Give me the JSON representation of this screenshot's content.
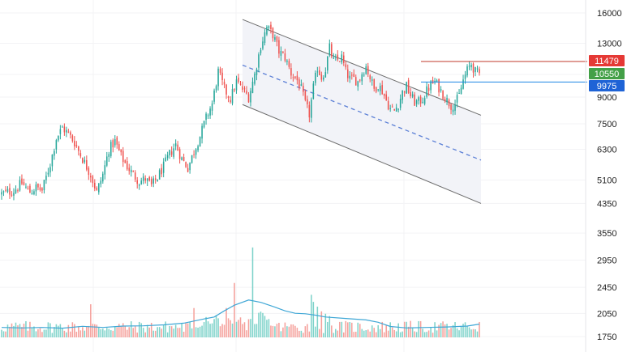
{
  "chart_data": {
    "type": "candlestick",
    "scale": "log",
    "price_axis": {
      "ticks": [
        16000,
        13000,
        10500,
        9000,
        7500,
        6300,
        5100,
        4350,
        3550,
        2950,
        2450,
        2050,
        1750
      ],
      "tick_labels": [
        "16000",
        "13000",
        "10500",
        "9000",
        "7500",
        "6300",
        "5100",
        "4350",
        "3550",
        "2950",
        "2450",
        "2050",
        "1750"
      ]
    },
    "price_labels": [
      {
        "label": "11479",
        "value": 11479,
        "color": "#e53935"
      },
      {
        "label": "10550",
        "value": 10550,
        "color": "#43a047"
      },
      {
        "label": "9975",
        "value": 9975,
        "color": "#1e63d6"
      }
    ],
    "horizontal_levels": [
      {
        "value": 11479,
        "color": "#c0392b"
      },
      {
        "value": 9975,
        "color": "#1e88e5"
      }
    ],
    "channel": {
      "upper": [
        {
          "bar": 0,
          "price": 15300
        },
        {
          "bar": 1,
          "price": 7950
        }
      ],
      "lower": [
        {
          "bar": 0,
          "price": 8550
        },
        {
          "bar": 1,
          "price": 4350
        }
      ],
      "middle": [
        {
          "bar": 0,
          "price": 11200
        },
        {
          "bar": 1,
          "price": 5850
        }
      ],
      "fill_color": "#f2f3f8",
      "line_color": "#6b6b6b",
      "mid_color": "#5b7fd6"
    },
    "close_path": [
      [
        0,
        4650
      ],
      [
        6,
        4750
      ],
      [
        10,
        5000
      ],
      [
        14,
        4700
      ],
      [
        17,
        4850
      ],
      [
        20,
        4750
      ],
      [
        24,
        5700
      ],
      [
        27,
        6800
      ],
      [
        30,
        7300
      ],
      [
        33,
        7000
      ],
      [
        36,
        6600
      ],
      [
        40,
        5900
      ],
      [
        44,
        5300
      ],
      [
        47,
        4700
      ],
      [
        50,
        5300
      ],
      [
        53,
        6300
      ],
      [
        56,
        6650
      ],
      [
        59,
        6000
      ],
      [
        62,
        5600
      ],
      [
        65,
        5300
      ],
      [
        68,
        5050
      ],
      [
        71,
        5150
      ],
      [
        74,
        4900
      ],
      [
        77,
        5200
      ],
      [
        80,
        5600
      ],
      [
        83,
        6100
      ],
      [
        86,
        6500
      ],
      [
        89,
        5900
      ],
      [
        92,
        5550
      ],
      [
        95,
        6200
      ],
      [
        98,
        6900
      ],
      [
        101,
        7800
      ],
      [
        104,
        8600
      ],
      [
        107,
        10700
      ],
      [
        110,
        9500
      ],
      [
        113,
        8900
      ],
      [
        116,
        10000
      ],
      [
        119,
        9500
      ],
      [
        122,
        9000
      ],
      [
        125,
        10500
      ],
      [
        128,
        12800
      ],
      [
        131,
        14500
      ],
      [
        134,
        13800
      ],
      [
        137,
        12300
      ],
      [
        140,
        11800
      ],
      [
        143,
        10600
      ],
      [
        146,
        10100
      ],
      [
        148,
        9500
      ],
      [
        150,
        8600
      ],
      [
        152,
        8000
      ],
      [
        154,
        9600
      ],
      [
        156,
        11000
      ],
      [
        158,
        10300
      ],
      [
        160,
        10900
      ],
      [
        162,
        12600
      ],
      [
        164,
        11500
      ],
      [
        166,
        11600
      ],
      [
        168,
        11800
      ],
      [
        170,
        10700
      ],
      [
        172,
        10200
      ],
      [
        174,
        10200
      ],
      [
        176,
        10000
      ],
      [
        178,
        10600
      ],
      [
        180,
        11100
      ],
      [
        182,
        10300
      ],
      [
        184,
        9500
      ],
      [
        186,
        9800
      ],
      [
        188,
        9400
      ],
      [
        190,
        8800
      ],
      [
        192,
        8300
      ],
      [
        194,
        8200
      ],
      [
        196,
        8600
      ],
      [
        198,
        9300
      ],
      [
        200,
        9700
      ],
      [
        202,
        9100
      ],
      [
        204,
        8700
      ],
      [
        206,
        8700
      ],
      [
        208,
        8900
      ],
      [
        210,
        9400
      ],
      [
        212,
        9800
      ],
      [
        214,
        10000
      ],
      [
        216,
        9600
      ],
      [
        218,
        9200
      ],
      [
        220,
        8800
      ],
      [
        222,
        8500
      ],
      [
        224,
        8600
      ],
      [
        226,
        9100
      ],
      [
        228,
        10100
      ],
      [
        230,
        10800
      ],
      [
        232,
        11300
      ],
      [
        234,
        10700
      ],
      [
        236,
        10550
      ]
    ],
    "volume": {
      "scale_top": 2000,
      "spikes": [
        [
          44,
          700
        ],
        [
          95,
          620
        ],
        [
          124,
          1900
        ],
        [
          115,
          1150
        ],
        [
          127,
          520
        ],
        [
          111,
          620
        ],
        [
          101,
          430
        ],
        [
          153,
          900
        ],
        [
          154,
          750
        ],
        [
          156,
          650
        ],
        [
          158,
          550
        ],
        [
          160,
          500
        ],
        [
          162,
          450
        ]
      ]
    },
    "volume_ma": [
      [
        0,
        210
      ],
      [
        10,
        200
      ],
      [
        20,
        210
      ],
      [
        30,
        195
      ],
      [
        40,
        235
      ],
      [
        50,
        210
      ],
      [
        60,
        240
      ],
      [
        70,
        245
      ],
      [
        80,
        265
      ],
      [
        90,
        300
      ],
      [
        100,
        390
      ],
      [
        105,
        430
      ],
      [
        110,
        560
      ],
      [
        115,
        680
      ],
      [
        122,
        790
      ],
      [
        128,
        740
      ],
      [
        135,
        640
      ],
      [
        140,
        560
      ],
      [
        145,
        510
      ],
      [
        150,
        500
      ],
      [
        155,
        470
      ],
      [
        160,
        430
      ],
      [
        170,
        400
      ],
      [
        180,
        370
      ],
      [
        186,
        320
      ],
      [
        192,
        230
      ],
      [
        200,
        200
      ],
      [
        210,
        210
      ],
      [
        220,
        220
      ],
      [
        230,
        240
      ],
      [
        236,
        280
      ]
    ]
  }
}
